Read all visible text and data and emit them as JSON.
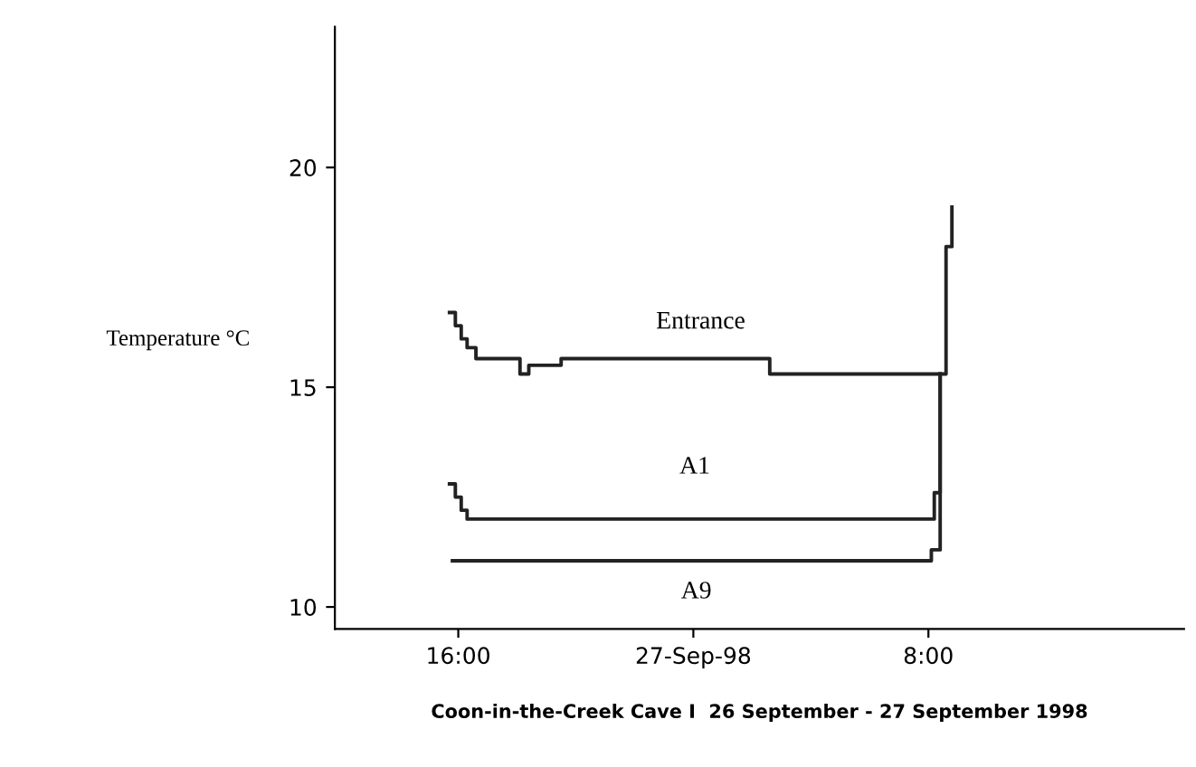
{
  "chart_data": {
    "type": "step",
    "xlabel": "Coon-in-the-Creek Cave I  26 September - 27 September 1998",
    "ylabel": "Temperature °C",
    "xlim": [
      "1998-09-26T11:48",
      "1998-09-27T16:42"
    ],
    "xticks": [
      {
        "value": "1998-09-26T16:00",
        "label": "16:00"
      },
      {
        "value": "1998-09-27T00:00",
        "label": "27-Sep-98"
      },
      {
        "value": "1998-09-27T08:00",
        "label": "8:00"
      }
    ],
    "ylim": [
      9.5,
      23.2
    ],
    "yticks": [
      10,
      15,
      20
    ],
    "grid": false,
    "legend": false,
    "marker": "none",
    "line_style": "solid",
    "series": [
      {
        "name": "Entrance",
        "color": "#222222",
        "x": [
          "1998-09-26T15:42",
          "1998-09-26T15:54",
          "1998-09-26T16:06",
          "1998-09-26T16:18",
          "1998-09-26T16:36",
          "1998-09-26T18:06",
          "1998-09-26T18:24",
          "1998-09-26T19:30",
          "1998-09-27T02:36",
          "1998-09-27T02:54",
          "1998-09-27T08:24",
          "1998-09-27T08:36",
          "1998-09-27T08:48"
        ],
        "values": [
          16.7,
          16.4,
          16.1,
          15.9,
          15.65,
          15.3,
          15.5,
          15.65,
          15.3,
          15.3,
          15.3,
          18.2,
          19.1
        ]
      },
      {
        "name": "A1",
        "color": "#222222",
        "x": [
          "1998-09-26T15:42",
          "1998-09-26T15:54",
          "1998-09-26T16:06",
          "1998-09-26T16:18",
          "1998-09-27T08:00",
          "1998-09-27T08:12",
          "1998-09-27T08:24"
        ],
        "values": [
          12.8,
          12.5,
          12.2,
          12.0,
          12.0,
          12.6,
          15.3
        ]
      },
      {
        "name": "A9",
        "color": "#222222",
        "x": [
          "1998-09-26T15:48",
          "1998-09-27T07:54",
          "1998-09-27T08:06",
          "1998-09-27T08:24"
        ],
        "values": [
          11.05,
          11.05,
          11.3,
          15.3
        ]
      }
    ]
  }
}
